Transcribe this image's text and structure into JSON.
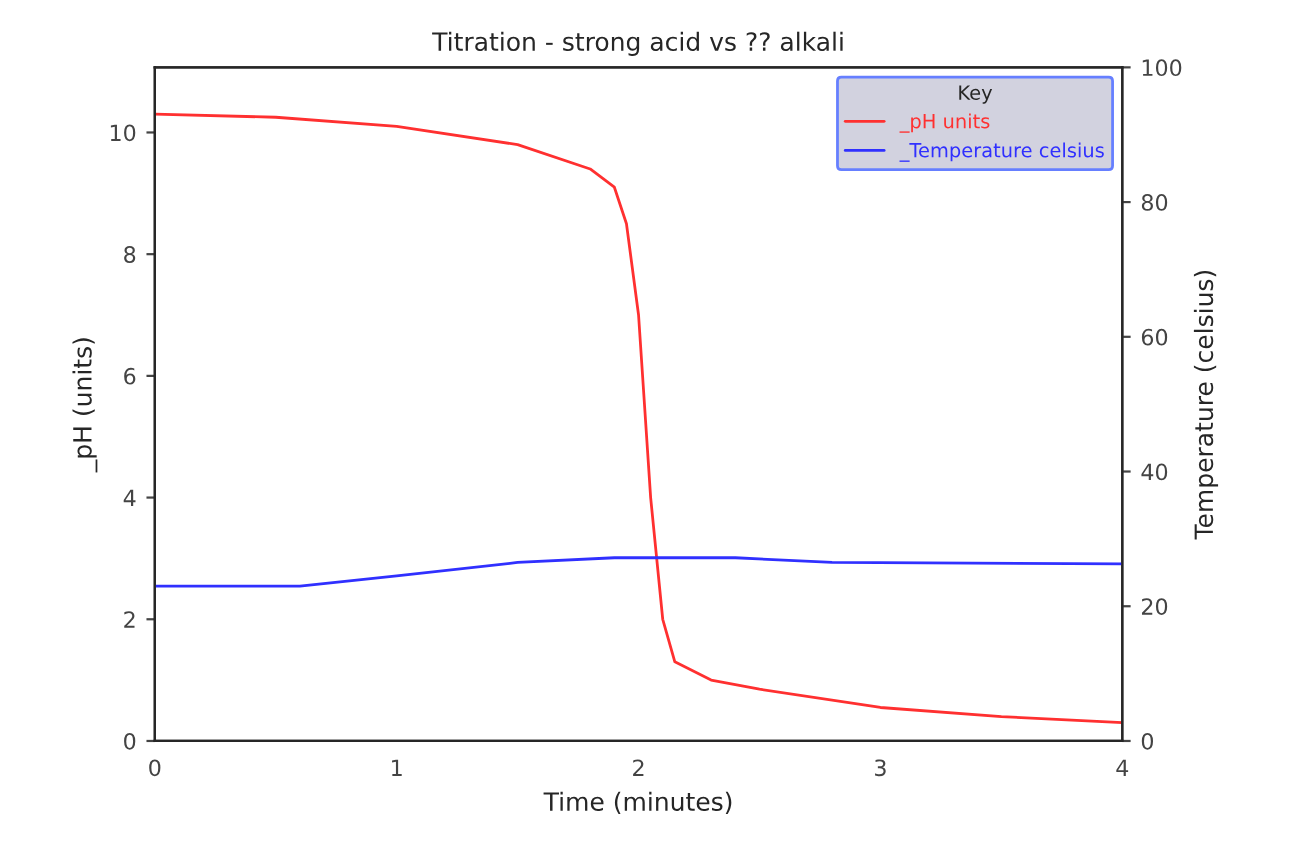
{
  "chart_data": {
    "type": "line",
    "title": "Titration - strong acid vs ?? alkali",
    "xlabel": "Time (minutes)",
    "ylabel": "_pH (units)",
    "y2label": "Temperature (celsius)",
    "legend_title": "Key",
    "legend": "top right",
    "xlim": [
      0,
      4
    ],
    "xticks": [
      0,
      1,
      2,
      3,
      4
    ],
    "ylim": [
      0,
      11.07
    ],
    "yticks": [
      0,
      2,
      4,
      6,
      8,
      10
    ],
    "y2lim": [
      0,
      100
    ],
    "y2ticks": [
      0,
      20,
      40,
      60,
      80,
      100
    ],
    "grid": false,
    "series": [
      {
        "name": "_pH units",
        "color": "#ff3030",
        "x": [
          0,
          0.5,
          1,
          1.5,
          1.8,
          1.9,
          1.95,
          2.0,
          2.05,
          2.1,
          2.15,
          2.3,
          2.5,
          3,
          3.5,
          4
        ],
        "values": [
          10.3,
          10.25,
          10.1,
          9.8,
          9.4,
          9.1,
          8.5,
          7.0,
          4.0,
          2.0,
          1.3,
          1.0,
          0.85,
          0.55,
          0.4,
          0.3
        ]
      },
      {
        "name": "_Temperature celsius",
        "color": "#3030ff",
        "axis": "y2",
        "x": [
          0,
          0.6,
          1,
          1.5,
          1.9,
          2.4,
          2.8,
          4
        ],
        "values": [
          23,
          23,
          24.5,
          26.5,
          27.2,
          27.2,
          26.5,
          26.3
        ]
      }
    ]
  }
}
